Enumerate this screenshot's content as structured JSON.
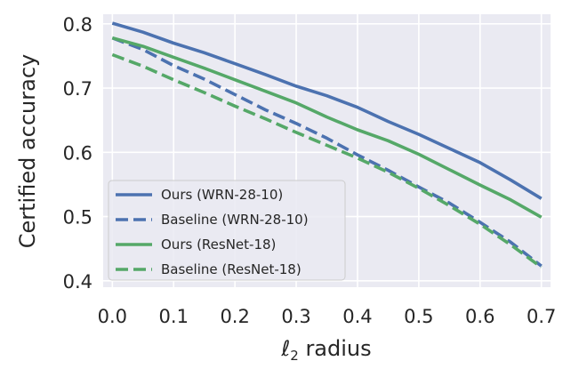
{
  "chart_data": {
    "type": "line",
    "xlabel_main": "ℓ",
    "xlabel_sub": "2",
    "xlabel_rest": " radius",
    "ylabel": "Certified accuracy",
    "xlim": [
      -0.015,
      0.715
    ],
    "ylim": [
      0.39,
      0.815
    ],
    "xticks": [
      "0.0",
      "0.1",
      "0.2",
      "0.3",
      "0.4",
      "0.5",
      "0.6",
      "0.7"
    ],
    "yticks": [
      "0.4",
      "0.5",
      "0.6",
      "0.7",
      "0.8"
    ],
    "grid": true,
    "background": "#eaeaf2",
    "legend_position": "lower-left",
    "x": [
      0.0,
      0.05,
      0.1,
      0.15,
      0.2,
      0.25,
      0.3,
      0.35,
      0.4,
      0.45,
      0.5,
      0.55,
      0.6,
      0.65,
      0.7
    ],
    "series": [
      {
        "name": "Ours (WRN-28-10)",
        "color": "#4c72b0",
        "style": "solid",
        "values": [
          0.801,
          0.787,
          0.77,
          0.755,
          0.738,
          0.721,
          0.703,
          0.688,
          0.67,
          0.648,
          0.628,
          0.606,
          0.584,
          0.557,
          0.528
        ]
      },
      {
        "name": "Baseline (WRN-28-10)",
        "color": "#4c72b0",
        "style": "dashed",
        "values": [
          0.778,
          0.76,
          0.735,
          0.714,
          0.69,
          0.666,
          0.645,
          0.622,
          0.596,
          0.572,
          0.546,
          0.521,
          0.491,
          0.46,
          0.423
        ]
      },
      {
        "name": "Ours (ResNet-18)",
        "color": "#55a868",
        "style": "solid",
        "values": [
          0.778,
          0.765,
          0.748,
          0.731,
          0.713,
          0.695,
          0.677,
          0.655,
          0.635,
          0.618,
          0.597,
          0.573,
          0.549,
          0.526,
          0.499
        ]
      },
      {
        "name": "Baseline (ResNet-18)",
        "color": "#55a868",
        "style": "dashed",
        "values": [
          0.752,
          0.734,
          0.713,
          0.693,
          0.672,
          0.652,
          0.631,
          0.611,
          0.591,
          0.569,
          0.544,
          0.517,
          0.488,
          0.456,
          0.421
        ]
      }
    ]
  }
}
